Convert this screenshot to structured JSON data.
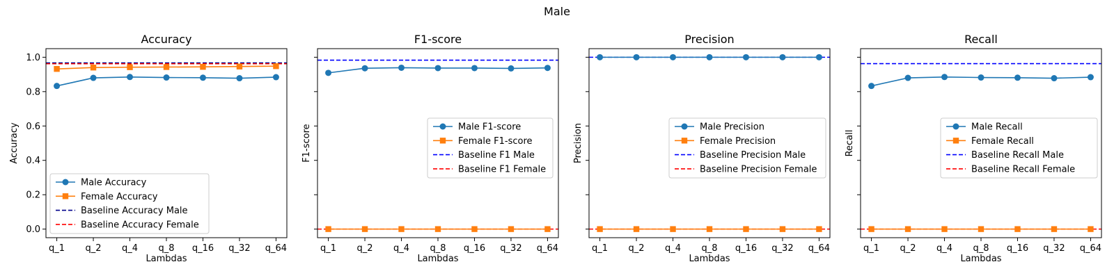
{
  "figure": {
    "suptitle": "Male"
  },
  "colors": {
    "male": "#1f77b4",
    "female": "#ff7f0e",
    "baseline_male": "#0000ff",
    "baseline_female": "#ff0000"
  },
  "chart_data": [
    {
      "type": "line",
      "title": "Accuracy",
      "xlabel": "Lambdas",
      "ylabel": "Accuracy",
      "categories": [
        "q_1",
        "q_2",
        "q_4",
        "q_8",
        "q_16",
        "q_32",
        "q_64"
      ],
      "ylim": [
        -0.05,
        1.05
      ],
      "yticks": [
        0.0,
        0.2,
        0.4,
        0.6,
        0.8,
        1.0
      ],
      "ytick_labels": [
        "0.0",
        "0.2",
        "0.4",
        "0.6",
        "0.8",
        "1.0"
      ],
      "legend_position": "lower-left",
      "series": [
        {
          "name": "Male Accuracy",
          "kind": "marker-line",
          "marker": "circle",
          "color": "#1f77b4",
          "values": [
            0.833,
            0.88,
            0.885,
            0.882,
            0.881,
            0.878,
            0.884
          ]
        },
        {
          "name": "Female Accuracy",
          "kind": "marker-line",
          "marker": "square",
          "color": "#ff7f0e",
          "values": [
            0.932,
            0.94,
            0.942,
            0.943,
            0.944,
            0.946,
            0.948
          ]
        },
        {
          "name": "Baseline Accuracy Male",
          "kind": "hline",
          "color": "#00008b",
          "value": 0.967
        },
        {
          "name": "Baseline Accuracy Female",
          "kind": "hline",
          "color": "#ff0000",
          "value": 0.962
        }
      ]
    },
    {
      "type": "line",
      "title": "F1-score",
      "xlabel": "Lambdas",
      "ylabel": "F1-score",
      "categories": [
        "q_1",
        "q_2",
        "q_4",
        "q_8",
        "q_16",
        "q_32",
        "q_64"
      ],
      "ylim": [
        -0.05,
        1.05
      ],
      "yticks": [
        0.0,
        0.2,
        0.4,
        0.6,
        0.8,
        1.0
      ],
      "ytick_labels": [],
      "legend_position": "center-right",
      "series": [
        {
          "name": "Male F1-score",
          "kind": "marker-line",
          "marker": "circle",
          "color": "#1f77b4",
          "values": [
            0.909,
            0.936,
            0.939,
            0.937,
            0.937,
            0.935,
            0.938
          ]
        },
        {
          "name": "Female F1-score",
          "kind": "marker-line",
          "marker": "square",
          "color": "#ff7f0e",
          "values": [
            0.0,
            0.0,
            0.0,
            0.0,
            0.0,
            0.0,
            0.0
          ]
        },
        {
          "name": "Baseline F1 Male",
          "kind": "hline",
          "color": "#0000ff",
          "value": 0.983
        },
        {
          "name": "Baseline F1 Female",
          "kind": "hline",
          "color": "#ff0000",
          "value": 0.0
        }
      ]
    },
    {
      "type": "line",
      "title": "Precision",
      "xlabel": "Lambdas",
      "ylabel": "Precision",
      "categories": [
        "q_1",
        "q_2",
        "q_4",
        "q_8",
        "q_16",
        "q_32",
        "q_64"
      ],
      "ylim": [
        -0.05,
        1.05
      ],
      "yticks": [
        0.0,
        0.2,
        0.4,
        0.6,
        0.8,
        1.0
      ],
      "ytick_labels": [],
      "legend_position": "center-right",
      "series": [
        {
          "name": "Male Precision",
          "kind": "marker-line",
          "marker": "circle",
          "color": "#1f77b4",
          "values": [
            1.0,
            1.0,
            1.0,
            1.0,
            1.0,
            1.0,
            1.0
          ]
        },
        {
          "name": "Female Precision",
          "kind": "marker-line",
          "marker": "square",
          "color": "#ff7f0e",
          "values": [
            0.0,
            0.0,
            0.0,
            0.0,
            0.0,
            0.0,
            0.0
          ]
        },
        {
          "name": "Baseline Precision Male",
          "kind": "hline",
          "color": "#0000ff",
          "value": 1.0
        },
        {
          "name": "Baseline Precision Female",
          "kind": "hline",
          "color": "#ff0000",
          "value": 0.0
        }
      ]
    },
    {
      "type": "line",
      "title": "Recall",
      "xlabel": "Lambdas",
      "ylabel": "Recall",
      "categories": [
        "q_1",
        "q_2",
        "q_4",
        "q_8",
        "q_16",
        "q_32",
        "q_64"
      ],
      "ylim": [
        -0.05,
        1.05
      ],
      "yticks": [
        0.0,
        0.2,
        0.4,
        0.6,
        0.8,
        1.0
      ],
      "ytick_labels": [],
      "legend_position": "center-right",
      "series": [
        {
          "name": "Male Recall",
          "kind": "marker-line",
          "marker": "circle",
          "color": "#1f77b4",
          "values": [
            0.833,
            0.88,
            0.885,
            0.882,
            0.881,
            0.878,
            0.884
          ]
        },
        {
          "name": "Female Recall",
          "kind": "marker-line",
          "marker": "square",
          "color": "#ff7f0e",
          "values": [
            0.0,
            0.0,
            0.0,
            0.0,
            0.0,
            0.0,
            0.0
          ]
        },
        {
          "name": "Baseline Recall Male",
          "kind": "hline",
          "color": "#0000ff",
          "value": 0.963
        },
        {
          "name": "Baseline Recall Female",
          "kind": "hline",
          "color": "#ff0000",
          "value": 0.0
        }
      ]
    }
  ]
}
